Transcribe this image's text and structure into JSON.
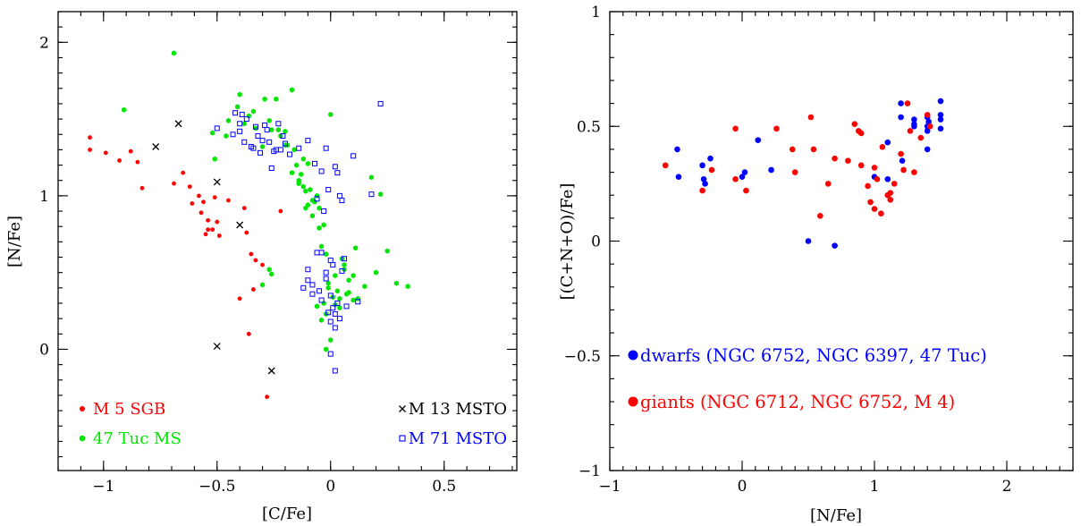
{
  "colors": {
    "red": "#ff0000",
    "green": "#00e600",
    "blue": "#0000ff",
    "black": "#000000"
  },
  "chart_data": [
    {
      "type": "scatter",
      "xlabel": "[C/Fe]",
      "ylabel": "[N/Fe]",
      "xlim": [
        -1.2,
        0.82
      ],
      "ylim": [
        -0.79,
        2.2
      ],
      "xticks": [
        -1,
        -0.5,
        0,
        0.5
      ],
      "xtick_labels": [
        "−1",
        "−0.5",
        "0",
        "0.5"
      ],
      "yticks": [
        0,
        1,
        2
      ],
      "ytick_labels": [
        "0",
        "1",
        "2"
      ],
      "legend_placement": "bottom-left and bottom-right",
      "series": [
        {
          "name": "M 5 SGB",
          "marker": "filled-circle",
          "color": "red",
          "x": [
            -1.06,
            -1.06,
            -0.99,
            -0.93,
            -0.88,
            -0.85,
            -0.83,
            -0.69,
            -0.65,
            -0.62,
            -0.61,
            -0.58,
            -0.57,
            -0.56,
            -0.55,
            -0.54,
            -0.54,
            -0.52,
            -0.51,
            -0.5,
            -0.49,
            -0.45,
            -0.4,
            -0.38,
            -0.37,
            -0.36,
            -0.35,
            -0.34,
            -0.33,
            -0.3,
            -0.28,
            -0.22
          ],
          "y": [
            1.38,
            1.3,
            1.28,
            1.23,
            1.29,
            1.22,
            1.05,
            1.08,
            1.15,
            1.06,
            0.95,
            1.0,
            0.89,
            0.96,
            0.75,
            0.78,
            0.84,
            0.78,
            0.99,
            0.83,
            0.74,
            0.97,
            0.33,
            0.92,
            0.76,
            0.1,
            0.62,
            0.39,
            0.58,
            0.55,
            -0.31,
            0.9
          ]
        },
        {
          "name": "47 Tuc MS",
          "marker": "filled-hexagon",
          "color": "green",
          "x": [
            -0.91,
            -0.69,
            -0.52,
            -0.51,
            -0.46,
            -0.45,
            -0.41,
            -0.4,
            -0.38,
            -0.36,
            -0.34,
            -0.33,
            -0.3,
            -0.29,
            -0.27,
            -0.26,
            -0.24,
            -0.22,
            -0.2,
            -0.19,
            -0.17,
            -0.16,
            -0.15,
            -0.14,
            -0.13,
            -0.12,
            -0.11,
            -0.1,
            -0.09,
            -0.08,
            -0.07,
            -0.06,
            -0.05,
            -0.04,
            -0.03,
            -0.02,
            -0.01,
            0.0,
            0.01,
            0.02,
            0.03,
            0.04,
            0.05,
            0.06,
            0.07,
            0.08,
            0.1,
            0.12,
            0.15,
            0.18,
            0.2,
            0.22,
            0.25,
            0.29,
            0.34,
            -0.27,
            -0.26,
            -0.3,
            -0.23,
            -0.17,
            -0.2,
            -0.11,
            -0.08,
            -0.05,
            -0.1,
            -0.14,
            -0.12,
            -0.01,
            -0.03,
            -0.04,
            -0.02,
            0.0,
            0.02,
            0.04,
            0.06,
            0.08,
            0.1,
            0.11,
            -0.06,
            -0.02
          ],
          "y": [
            1.56,
            1.93,
            1.41,
            1.24,
            1.39,
            1.49,
            1.58,
            1.66,
            1.47,
            1.52,
            1.55,
            1.44,
            1.32,
            1.63,
            1.49,
            1.43,
            1.63,
            1.39,
            1.42,
            1.33,
            1.69,
            1.3,
            1.2,
            1.1,
            1.14,
            1.06,
            0.92,
            1.21,
            1.04,
            0.87,
            0.96,
            1.0,
            0.79,
            0.67,
            0.81,
            0.62,
            0.4,
            1.53,
            0.34,
            0.29,
            0.38,
            0.27,
            0.59,
            0.52,
            0.36,
            0.45,
            0.48,
            0.33,
            0.41,
            1.12,
            0.5,
            1.01,
            0.64,
            0.43,
            0.41,
            0.52,
            0.49,
            0.42,
            1.43,
            1.15,
            1.33,
            1.03,
            0.97,
            0.92,
            0.94,
            1.08,
            1.24,
            0.43,
            0.3,
            0.19,
            0.23,
            0.06,
            0.48,
            0.33,
            0.55,
            0.37,
            0.32,
            0.66,
            0.28,
            0.0
          ]
        },
        {
          "name": "M 13 MSTO",
          "marker": "cross",
          "color": "black",
          "x": [
            -0.77,
            -0.67,
            -0.5,
            -0.4,
            -0.26,
            -0.5
          ],
          "y": [
            1.32,
            1.47,
            1.09,
            0.81,
            -0.14,
            0.02
          ]
        },
        {
          "name": "M 71 MSTO",
          "marker": "open-square",
          "color": "blue",
          "x": [
            -0.5,
            -0.43,
            -0.42,
            -0.4,
            -0.4,
            -0.39,
            -0.38,
            -0.37,
            -0.35,
            -0.34,
            -0.33,
            -0.32,
            -0.31,
            -0.3,
            -0.29,
            -0.28,
            -0.27,
            -0.26,
            -0.25,
            -0.24,
            -0.23,
            -0.22,
            -0.21,
            -0.2,
            -0.18,
            -0.14,
            -0.1,
            -0.07,
            -0.06,
            -0.04,
            -0.03,
            -0.02,
            -0.01,
            0.0,
            0.01,
            0.02,
            0.03,
            0.04,
            0.05,
            0.06,
            0.07,
            0.1,
            0.12,
            0.18,
            0.22,
            -0.1,
            -0.08,
            -0.05,
            -0.04,
            -0.02,
            -0.01,
            0.0,
            0.01,
            0.02,
            0.03,
            0.04,
            0.05,
            -0.12,
            -0.1,
            -0.06,
            -0.04,
            -0.02,
            0.0,
            0.02,
            -0.08,
            0.0,
            0.02
          ],
          "y": [
            1.44,
            1.4,
            1.54,
            1.47,
            1.42,
            1.53,
            1.35,
            1.5,
            1.32,
            1.31,
            1.45,
            1.39,
            1.28,
            1.36,
            1.46,
            1.43,
            1.35,
            1.18,
            1.29,
            1.3,
            1.47,
            1.3,
            1.39,
            1.34,
            1.27,
            1.31,
            1.36,
            1.21,
            0.98,
            1.16,
            0.9,
            1.31,
            1.04,
            0.58,
            0.55,
            1.19,
            1.15,
            1.0,
            0.97,
            0.59,
            0.28,
            1.26,
            0.31,
            1.01,
            1.6,
            0.52,
            0.42,
            0.38,
            0.32,
            0.46,
            0.24,
            0.35,
            0.27,
            0.23,
            0.3,
            0.2,
            0.51,
            0.4,
            0.45,
            0.63,
            0.63,
            0.5,
            0.18,
            0.14,
            0.36,
            -0.03,
            -0.14
          ]
        }
      ]
    },
    {
      "type": "scatter",
      "xlabel": "[N/Fe]",
      "ylabel": "[(C+N+O)/Fe]",
      "xlim": [
        -1,
        2.5
      ],
      "ylim": [
        -1,
        1
      ],
      "xticks": [
        -1,
        0,
        1,
        2
      ],
      "xtick_labels": [
        "−1",
        "0",
        "1",
        "2"
      ],
      "yticks": [
        -1,
        -0.5,
        0,
        0.5,
        1
      ],
      "ytick_labels": [
        "−1",
        "−0.5",
        "0",
        "0.5",
        "1"
      ],
      "legend_placement": "bottom-left",
      "series": [
        {
          "name": "dwarfs (NGC 6752, NGC 6397, 47 Tuc)",
          "marker": "filled-circle",
          "color": "blue",
          "x": [
            -0.49,
            -0.48,
            -0.3,
            -0.29,
            -0.28,
            -0.24,
            0.0,
            0.02,
            0.12,
            0.22,
            0.5,
            0.7,
            1.0,
            1.1,
            1.1,
            1.2,
            1.2,
            1.21,
            1.3,
            1.3,
            1.3,
            1.4,
            1.4,
            1.4,
            1.4,
            1.41,
            1.5,
            1.5,
            1.5,
            1.5
          ],
          "y": [
            0.4,
            0.28,
            0.33,
            0.27,
            0.25,
            0.36,
            0.28,
            0.3,
            0.44,
            0.31,
            0.0,
            -0.02,
            0.28,
            0.43,
            0.27,
            0.6,
            0.54,
            0.35,
            0.53,
            0.51,
            0.5,
            0.54,
            0.5,
            0.48,
            0.4,
            0.52,
            0.61,
            0.55,
            0.53,
            0.49
          ]
        },
        {
          "name": "giants (NGC 6712, NGC 6752, M 4)",
          "marker": "filled-circle",
          "color": "red",
          "x": [
            -0.58,
            -0.3,
            -0.23,
            -0.05,
            -0.05,
            0.03,
            0.26,
            0.38,
            0.4,
            0.52,
            0.54,
            0.59,
            0.65,
            0.7,
            0.8,
            0.85,
            0.88,
            0.9,
            0.9,
            0.95,
            0.97,
            1.0,
            1.0,
            1.02,
            1.05,
            1.06,
            1.1,
            1.12,
            1.12,
            1.15,
            1.2,
            1.22,
            1.25,
            1.27,
            1.3,
            1.35,
            1.4,
            1.42
          ],
          "y": [
            0.33,
            0.22,
            0.31,
            0.27,
            0.49,
            0.22,
            0.49,
            0.4,
            0.3,
            0.54,
            0.4,
            0.11,
            0.25,
            0.36,
            0.35,
            0.51,
            0.48,
            0.47,
            0.33,
            0.24,
            0.17,
            0.32,
            0.14,
            0.27,
            0.12,
            0.41,
            0.2,
            0.21,
            0.18,
            0.25,
            0.38,
            0.31,
            0.6,
            0.48,
            0.3,
            0.45,
            0.55,
            0.5
          ]
        }
      ]
    }
  ]
}
